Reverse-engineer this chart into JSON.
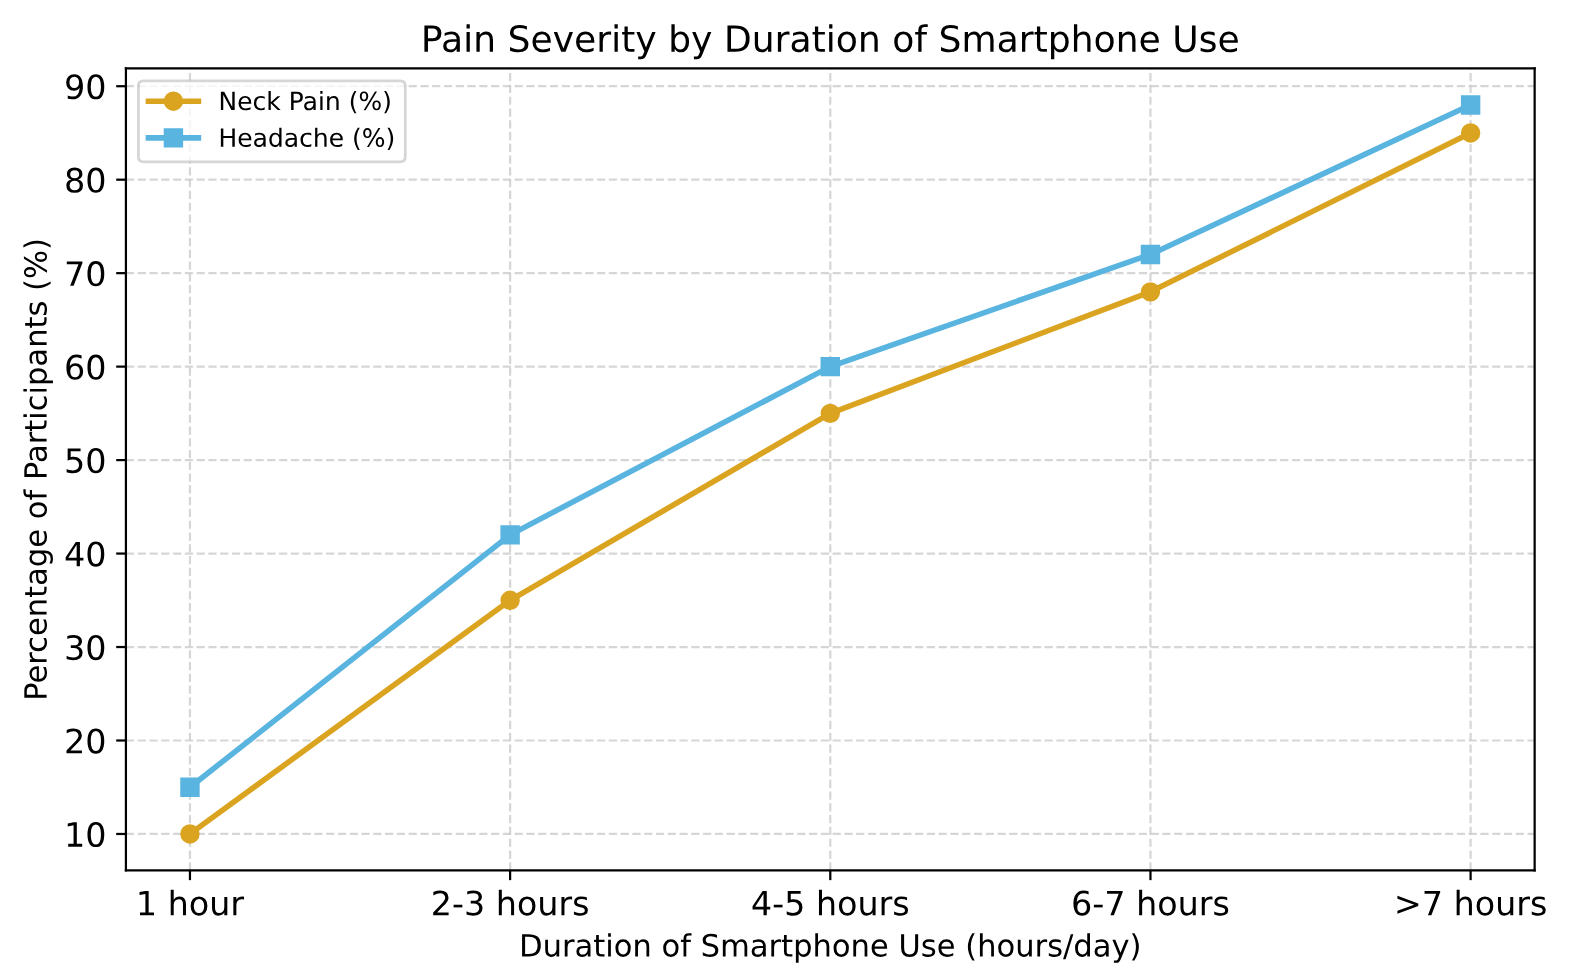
{
  "chart_data": {
    "type": "line",
    "title": "Pain Severity by Duration of Smartphone Use",
    "xlabel": "Duration of Smartphone Use (hours/day)",
    "ylabel": "Percentage of Participants (%)",
    "categories": [
      "1 hour",
      "2-3 hours",
      "4-5 hours",
      "6-7 hours",
      ">7 hours"
    ],
    "series": [
      {
        "name": "Neck Pain (%)",
        "color": "#dba420",
        "values": [
          10,
          35,
          55,
          68,
          85
        ],
        "marker": "circle"
      },
      {
        "name": "Headache (%)",
        "color": "#5ab4e0",
        "values": [
          15,
          42,
          60,
          72,
          88
        ],
        "marker": "square"
      }
    ],
    "ylim": [
      6.1,
      91.9
    ],
    "yticks": [
      10,
      20,
      30,
      40,
      50,
      60,
      70,
      80,
      90
    ],
    "grid": true,
    "legend": "top left",
    "line_style": "solid"
  }
}
